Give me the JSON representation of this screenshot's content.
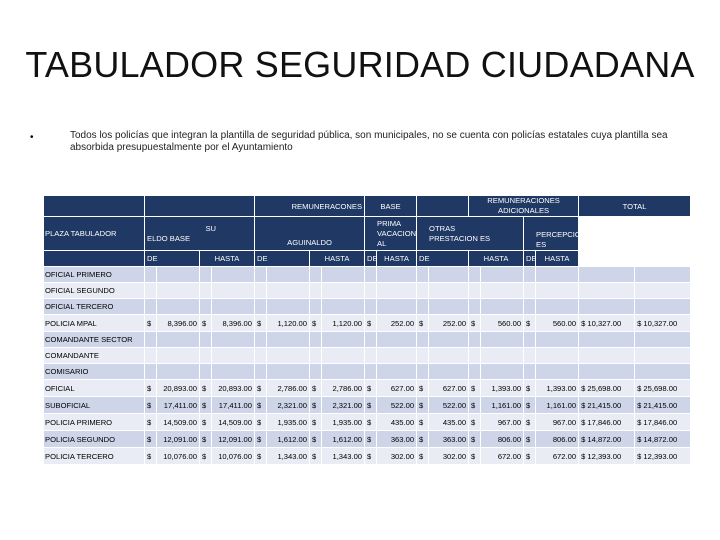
{
  "title": "TABULADOR SEGURIDAD CIUDADANA",
  "bullet": {
    "marker": "•",
    "text": "Todos los policías que integran la plantilla de seguridad pública, son municipales, no se cuenta con policías estatales cuya plantilla sea absorbida presupuestalmente por el Ayuntamiento"
  },
  "table": {
    "header1": {
      "remuneraciones": "REMUNERACONES",
      "base": "BASE",
      "adicionales": "REMUNERACIONES ADICIONALES",
      "total": "TOTAL"
    },
    "header2": {
      "plaza": "PLAZA TABULADOR",
      "sueldo_a": "SU",
      "sueldo_b": "ELDO BASE",
      "aguinaldo": "AGUINALDO",
      "prima": "PRIMA VACACION AL",
      "otras": "OTRAS PRESTACION ES",
      "percepciones": "PERCEPCION ES"
    },
    "header3": [
      "DE",
      "HASTA",
      "DE",
      "HASTA",
      "DE",
      "HASTA",
      "DE",
      "HASTA",
      "DE",
      "HASTA"
    ],
    "rows": [
      {
        "label": "OFICIAL PRIMERO",
        "cells": []
      },
      {
        "label": "OFICIAL SEGUNDO",
        "cells": []
      },
      {
        "label": "OFICIAL TERCERO",
        "cells": []
      },
      {
        "label": "POLICIA MPAL",
        "cells": [
          "$",
          "8,396.00",
          "$",
          "8,396.00",
          "$",
          "1,120.00",
          "$",
          "1,120.00",
          "$",
          "252.00",
          "$",
          "252.00",
          "$",
          "560.00",
          "$",
          "560.00",
          "$ 10,327.00",
          "$ 10,327.00"
        ]
      },
      {
        "label": "COMANDANTE SECTOR",
        "cells": []
      },
      {
        "label": "COMANDANTE",
        "cells": []
      },
      {
        "label": "COMISARIO",
        "cells": []
      },
      {
        "label": "OFICIAL",
        "cells": [
          "$",
          "20,893.00",
          "$",
          "20,893.00",
          "$",
          "2,786.00",
          "$",
          "2,786.00",
          "$",
          "627.00",
          "$",
          "627.00",
          "$",
          "1,393.00",
          "$",
          "1,393.00",
          "$ 25,698.00",
          "$ 25,698.00"
        ]
      },
      {
        "label": "SUBOFICIAL",
        "cells": [
          "$",
          "17,411.00",
          "$",
          "17,411.00",
          "$",
          "2,321.00",
          "$",
          "2,321.00",
          "$",
          "522.00",
          "$",
          "522.00",
          "$",
          "1,161.00",
          "$",
          "1,161.00",
          "$ 21,415.00",
          "$ 21,415.00"
        ]
      },
      {
        "label": "POLICIA PRIMERO",
        "cells": [
          "$",
          "14,509.00",
          "$",
          "14,509.00",
          "$",
          "1,935.00",
          "$",
          "1,935.00",
          "$",
          "435.00",
          "$",
          "435.00",
          "$",
          "967.00",
          "$",
          "967.00",
          "$ 17,846.00",
          "$ 17,846.00"
        ]
      },
      {
        "label": "POLICIA SEGUNDO",
        "cells": [
          "$",
          "12,091.00",
          "$",
          "12,091.00",
          "$",
          "1,612.00",
          "$",
          "1,612.00",
          "$",
          "363.00",
          "$",
          "363.00",
          "$",
          "806.00",
          "$",
          "806.00",
          "$ 14,872.00",
          "$ 14,872.00"
        ]
      },
      {
        "label": "POLICIA TERCERO",
        "cells": [
          "$",
          "10,076.00",
          "$",
          "10,076.00",
          "$",
          "1,343.00",
          "$",
          "1,343.00",
          "$",
          "302.00",
          "$",
          "302.00",
          "$",
          "672.00",
          "$",
          "672.00",
          "$ 12,393.00",
          "$ 12,393.00"
        ]
      }
    ]
  },
  "colors": {
    "header_bg": "#1f3864",
    "row_odd": "#cfd5e8",
    "row_even": "#e9ecf4"
  }
}
